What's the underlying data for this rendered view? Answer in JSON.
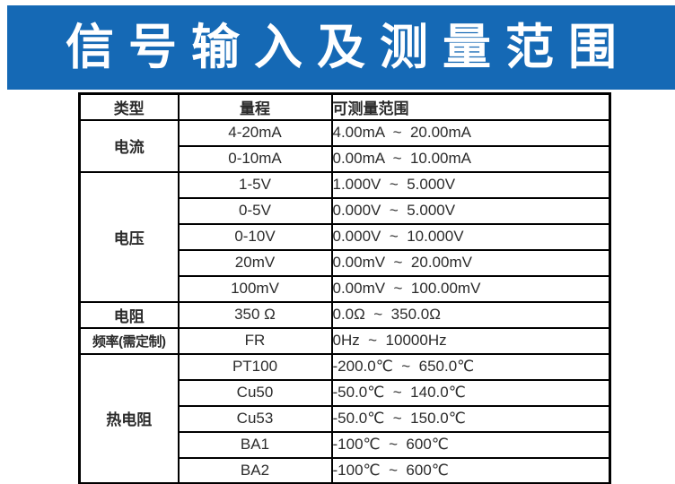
{
  "banner": {
    "title": "信号输入及测量范围",
    "bg_color": "#1569b5",
    "text_color": "#ffffff"
  },
  "table": {
    "columns": [
      "类型",
      "量程",
      "可测量范围"
    ],
    "rows": [
      {
        "type": "电流",
        "type_rowspan": 2,
        "range": "4-20mA",
        "measure": "4.00mA  ~  20.00mA"
      },
      {
        "range": "0-10mA",
        "measure": "0.00mA  ~  10.00mA"
      },
      {
        "type": "电压",
        "type_rowspan": 5,
        "range": "1-5V",
        "measure": "1.000V  ~  5.000V"
      },
      {
        "range": "0-5V",
        "measure": "0.000V  ~  5.000V"
      },
      {
        "range": "0-10V",
        "measure": "0.000V  ~  10.000V"
      },
      {
        "range": "20mV",
        "measure": "0.00mV  ~  20.00mV"
      },
      {
        "range": "100mV",
        "measure": "0.00mV  ~  100.00mV"
      },
      {
        "type": "电阻",
        "type_rowspan": 1,
        "range": "350 Ω",
        "measure": "0.0Ω  ~  350.0Ω"
      },
      {
        "type": "频率(需定制)",
        "type_rowspan": 1,
        "range": "FR",
        "measure": "0Hz  ~  10000Hz"
      },
      {
        "type": "热电阻",
        "type_rowspan": 5,
        "range": "PT100",
        "measure": "-200.0℃  ~  650.0℃"
      },
      {
        "range": "Cu50",
        "measure": "-50.0℃  ~  140.0℃"
      },
      {
        "range": "Cu53",
        "measure": "-50.0℃  ~  150.0℃"
      },
      {
        "range": "BA1",
        "measure": "-100℃  ~  600℃"
      },
      {
        "range": "BA2",
        "measure": "-100℃  ~  600℃"
      }
    ]
  }
}
